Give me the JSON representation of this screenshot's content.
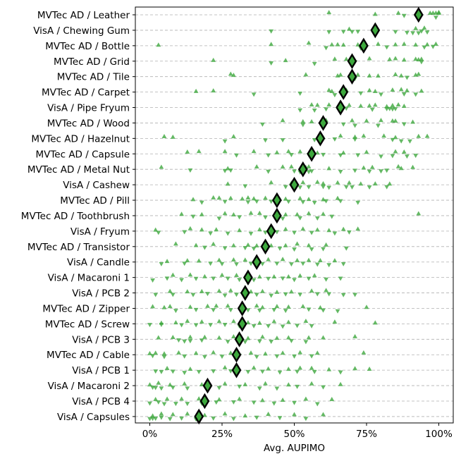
{
  "chart_data": {
    "type": "scatter",
    "xlabel": "Avg. AUPIMO",
    "x_ticks": [
      "0%",
      "25%",
      "50%",
      "75%",
      "100%"
    ],
    "x_tick_values": [
      0,
      25,
      50,
      75,
      100
    ],
    "xlim": [
      -5,
      105
    ],
    "grid": "horizontal dashed",
    "colors": {
      "points": "#3da83d",
      "mean_marker_edge": "#000000"
    },
    "categories": [
      "MVTec AD / Leather",
      "VisA / Chewing Gum",
      "MVTec AD / Bottle",
      "MVTec AD / Grid",
      "MVTec AD / Tile",
      "MVTec AD / Carpet",
      "VisA / Pipe Fryum",
      "MVTec AD / Wood",
      "MVTec AD / Hazelnut",
      "MVTec AD / Capsule",
      "MVTec AD / Metal Nut",
      "VisA / Cashew",
      "MVTec AD / Pill",
      "MVTec AD / Toothbrush",
      "VisA / Fryum",
      "MVTec AD / Transistor",
      "VisA / Candle",
      "VisA / Macaroni 1",
      "VisA / PCB 2",
      "MVTec AD / Zipper",
      "MVTec AD / Screw",
      "VisA / PCB 3",
      "MVTec AD / Cable",
      "VisA / PCB 1",
      "VisA / Macaroni 2",
      "VisA / PCB 4",
      "VisA / Capsules"
    ],
    "means": [
      93,
      78,
      74,
      70,
      70,
      67,
      66,
      60,
      59,
      56,
      53,
      50,
      44,
      44,
      42,
      40,
      37,
      34,
      33,
      32,
      32,
      31,
      30,
      30,
      20,
      19,
      17
    ],
    "samples": [
      {
        "up": [
          62,
          78,
          86,
          97,
          98,
          99,
          100,
          100
        ],
        "down": [
          88,
          99
        ]
      },
      {
        "up": [
          69,
          92,
          95
        ],
        "down": [
          42,
          62,
          67,
          70,
          72,
          85,
          89,
          91,
          93,
          94,
          96
        ]
      },
      {
        "up": [
          3,
          42,
          55,
          63,
          65,
          67,
          72,
          79,
          85,
          88,
          92,
          96,
          99
        ],
        "down": [
          61,
          73,
          82,
          95,
          98
        ]
      },
      {
        "up": [
          22,
          47,
          64,
          68,
          76,
          83,
          85,
          88,
          92,
          93,
          94
        ],
        "down": [
          42,
          57,
          70,
          71,
          94
        ]
      },
      {
        "up": [
          28,
          29,
          54,
          65,
          66,
          72,
          76,
          79,
          85,
          87,
          92,
          93
        ],
        "down": [
          71,
          89
        ]
      },
      {
        "up": [
          16,
          22,
          62,
          63,
          68,
          76,
          78,
          84,
          87,
          89,
          94
        ],
        "down": [
          36,
          52,
          64,
          73,
          80,
          88,
          92
        ]
      },
      {
        "up": [
          56,
          58,
          62,
          66,
          69,
          73,
          76,
          78,
          82,
          84,
          86,
          88
        ],
        "down": [
          52,
          57,
          61,
          68,
          77,
          82,
          83,
          84,
          85
        ]
      },
      {
        "up": [
          46,
          53,
          56,
          61,
          70,
          75,
          80,
          84,
          85,
          91
        ],
        "down": [
          39,
          53,
          60,
          67,
          71,
          79,
          88
        ]
      },
      {
        "up": [
          5,
          8,
          29,
          60,
          66,
          71,
          74,
          81,
          85,
          93,
          96
        ],
        "down": [
          26,
          40,
          46,
          57,
          64,
          71,
          84,
          87,
          90
        ]
      },
      {
        "up": [
          13,
          17,
          26,
          36,
          44,
          48,
          52,
          58,
          67,
          75,
          85,
          88
        ],
        "down": [
          30,
          41,
          49,
          55,
          60,
          66,
          72,
          80,
          84,
          89,
          92
        ]
      },
      {
        "up": [
          4,
          27,
          37,
          46,
          49,
          54,
          55,
          62,
          74,
          77,
          86,
          87,
          91
        ],
        "down": [
          14,
          26,
          28,
          41,
          50,
          52,
          55,
          56,
          66,
          71,
          76,
          80,
          82
        ]
      },
      {
        "up": [
          27,
          42,
          49,
          53,
          58,
          60,
          65,
          69,
          73,
          78,
          83
        ],
        "down": [
          33,
          47,
          52,
          55,
          60,
          62,
          68,
          70,
          76,
          82
        ]
      },
      {
        "up": [
          15,
          22,
          24,
          28,
          32,
          34,
          36,
          40,
          45,
          47,
          52,
          55,
          60,
          65
        ],
        "down": [
          18,
          26,
          34,
          37,
          42,
          48,
          53,
          57,
          61,
          66,
          72
        ]
      },
      {
        "up": [
          11,
          18,
          26,
          29,
          35,
          38,
          44,
          47,
          51,
          55,
          60,
          93
        ],
        "down": [
          15,
          24,
          31,
          40,
          46,
          52,
          58,
          63
        ]
      },
      {
        "up": [
          2,
          14,
          18,
          23,
          31,
          38,
          42,
          47,
          53,
          58,
          62,
          67,
          72
        ],
        "down": [
          3,
          12,
          21,
          27,
          35,
          40,
          44,
          50,
          56,
          64,
          69
        ]
      },
      {
        "up": [
          9,
          16,
          22,
          29,
          34,
          37,
          42,
          47,
          51,
          55,
          61
        ],
        "down": [
          19,
          26,
          33,
          36,
          45,
          50,
          56,
          60,
          68
        ]
      },
      {
        "up": [
          6,
          13,
          17,
          24,
          29,
          33,
          37,
          41,
          46,
          51,
          55,
          59,
          64
        ],
        "down": [
          4,
          12,
          21,
          25,
          30,
          35,
          39,
          44,
          49,
          53,
          58,
          62,
          67
        ]
      },
      {
        "up": [
          8,
          14,
          19,
          25,
          30,
          34,
          38,
          43,
          48,
          52,
          57
        ],
        "down": [
          1,
          6,
          11,
          16,
          22,
          27,
          31,
          36,
          41,
          46,
          50,
          55,
          61,
          66
        ]
      },
      {
        "up": [
          7,
          13,
          18,
          24,
          28,
          35,
          39,
          44,
          49,
          56,
          61
        ],
        "down": [
          2,
          8,
          15,
          20,
          26,
          30,
          37,
          42,
          47,
          52,
          58,
          62,
          67,
          71
        ]
      },
      {
        "up": [
          1,
          5,
          7,
          14,
          20,
          23,
          27,
          32,
          37,
          39,
          44,
          48,
          53,
          59,
          75
        ],
        "down": [
          9,
          16,
          22,
          28,
          34,
          38,
          43,
          47,
          55,
          60,
          65
        ]
      },
      {
        "up": [
          4,
          9,
          13,
          18,
          24,
          29,
          34,
          38,
          43,
          48,
          54,
          64,
          78
        ],
        "down": [
          0,
          4,
          11,
          16,
          21,
          26,
          31,
          36,
          41,
          46,
          51,
          56
        ]
      },
      {
        "up": [
          3,
          8,
          14,
          19,
          24,
          29,
          34,
          39,
          44,
          48,
          55,
          60,
          71
        ],
        "down": [
          10,
          12,
          14,
          18,
          27,
          33,
          38,
          42,
          49,
          54
        ]
      },
      {
        "up": [
          0,
          2,
          5,
          10,
          16,
          22,
          28,
          35,
          40,
          46,
          52,
          58,
          74
        ],
        "down": [
          1,
          5,
          12,
          19,
          25,
          31,
          37,
          44,
          50,
          56
        ]
      },
      {
        "up": [
          6,
          14,
          26,
          36,
          41,
          48,
          52,
          56,
          62,
          71,
          76
        ],
        "down": [
          2,
          4,
          8,
          12,
          17,
          22,
          28,
          34,
          39,
          45,
          51,
          57,
          66
        ]
      },
      {
        "up": [
          0,
          3,
          7,
          12,
          18,
          26,
          33,
          40,
          48,
          56,
          66
        ],
        "down": [
          1,
          2,
          4,
          8,
          13,
          19,
          24,
          31,
          38,
          44,
          51,
          60
        ]
      },
      {
        "up": [
          2,
          6,
          11,
          17,
          24,
          31,
          39,
          46,
          54,
          63
        ],
        "down": [
          0,
          3,
          5,
          9,
          13,
          18,
          23,
          29,
          36,
          43,
          50,
          58
        ]
      },
      {
        "up": [
          1,
          4,
          8,
          13,
          19,
          26,
          33,
          41,
          50,
          60
        ],
        "down": [
          0,
          1,
          2,
          4,
          7,
          11,
          16,
          22,
          29,
          37,
          45,
          54
        ]
      }
    ]
  }
}
